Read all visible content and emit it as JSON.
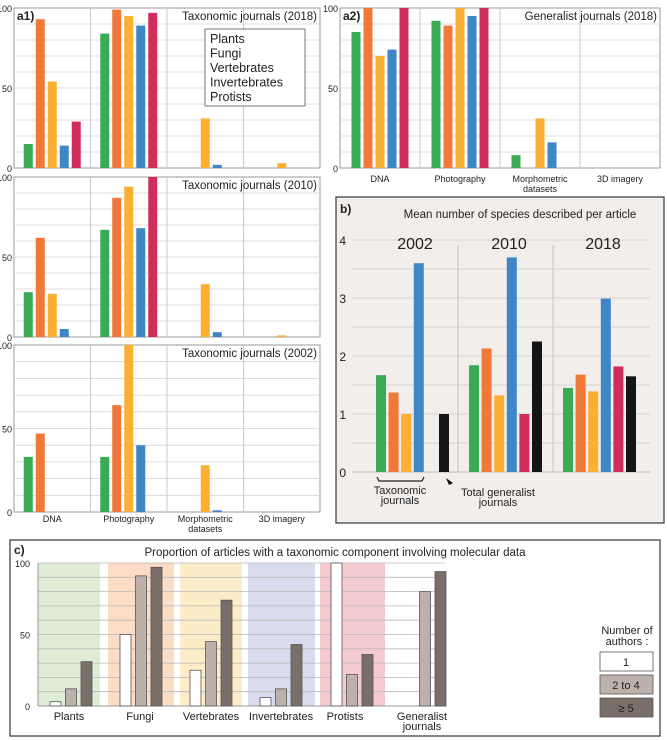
{
  "colors": {
    "Plants": "#3aaa55",
    "Fungi": "#f07838",
    "Vertebrates": "#fbb034",
    "Invertebrates": "#3e86c6",
    "Protists": "#cf2e5c",
    "Total generalist": "#151515",
    "one": "#ffffff",
    "two_to_four": "#bdb2ab",
    "five_plus": "#7a6e69"
  },
  "chart_data": [
    {
      "id": "a1_2018",
      "panel_label": "a1)",
      "type": "bar",
      "title": "Taxonomic journals (2018)",
      "categories": [
        "DNA",
        "Photography",
        "Morphometric datasets",
        "3D imagery"
      ],
      "ylim": [
        0,
        100
      ],
      "yticks": [
        "0",
        "50",
        "100"
      ],
      "legend": [
        "Plants",
        "Fungi",
        "Vertebrates",
        "Invertebrates",
        "Protists"
      ],
      "series": [
        {
          "name": "Plants",
          "values": [
            15,
            84,
            0,
            0
          ]
        },
        {
          "name": "Fungi",
          "values": [
            93,
            99,
            0,
            0
          ]
        },
        {
          "name": "Vertebrates",
          "values": [
            54,
            95,
            31,
            3
          ]
        },
        {
          "name": "Invertebrates",
          "values": [
            14,
            89,
            2,
            0
          ]
        },
        {
          "name": "Protists",
          "values": [
            29,
            97,
            0,
            0
          ]
        }
      ]
    },
    {
      "id": "a1_2010",
      "type": "bar",
      "title": "Taxonomic journals (2010)",
      "categories": [
        "DNA",
        "Photography",
        "Morphometric datasets",
        "3D imagery"
      ],
      "ylim": [
        0,
        100
      ],
      "yticks": [
        "0",
        "50",
        "100"
      ],
      "series": [
        {
          "name": "Plants",
          "values": [
            28,
            67,
            0,
            0
          ]
        },
        {
          "name": "Fungi",
          "values": [
            62,
            87,
            0,
            0
          ]
        },
        {
          "name": "Vertebrates",
          "values": [
            27,
            94,
            33,
            1
          ]
        },
        {
          "name": "Invertebrates",
          "values": [
            5,
            68,
            3,
            0
          ]
        },
        {
          "name": "Protists",
          "values": [
            0,
            100,
            0,
            0
          ]
        }
      ]
    },
    {
      "id": "a1_2002",
      "type": "bar",
      "title": "Taxonomic journals (2002)",
      "categories": [
        "DNA",
        "Photography",
        "Morphometric datasets",
        "3D imagery"
      ],
      "ylim": [
        0,
        100
      ],
      "yticks": [
        "0",
        "50",
        "100"
      ],
      "series": [
        {
          "name": "Plants",
          "values": [
            33,
            33,
            0,
            0
          ]
        },
        {
          "name": "Fungi",
          "values": [
            47,
            64,
            0,
            0
          ]
        },
        {
          "name": "Vertebrates",
          "values": [
            0,
            100,
            28,
            0
          ]
        },
        {
          "name": "Invertebrates",
          "values": [
            0,
            40,
            1,
            0
          ]
        },
        {
          "name": "Protists",
          "values": [
            0,
            0,
            0,
            0
          ]
        }
      ]
    },
    {
      "id": "a2_2018",
      "panel_label": "a2)",
      "type": "bar",
      "title": "Generalist journals (2018)",
      "categories": [
        "DNA",
        "Photography",
        "Morphometric datasets",
        "3D imagery"
      ],
      "ylim": [
        0,
        100
      ],
      "yticks": [
        "0",
        "50",
        "100"
      ],
      "series": [
        {
          "name": "Plants",
          "values": [
            85,
            92,
            8,
            0
          ]
        },
        {
          "name": "Fungi",
          "values": [
            100,
            89,
            0,
            0
          ]
        },
        {
          "name": "Vertebrates",
          "values": [
            70,
            100,
            31,
            0
          ]
        },
        {
          "name": "Invertebrates",
          "values": [
            74,
            95,
            16,
            0
          ]
        },
        {
          "name": "Protists",
          "values": [
            100,
            100,
            0,
            0
          ]
        }
      ]
    },
    {
      "id": "b",
      "panel_label": "b)",
      "type": "bar",
      "title": "Mean number of species described per article",
      "categories": [
        "2002",
        "2010",
        "2018"
      ],
      "ylim": [
        0,
        4
      ],
      "yticks": [
        "0",
        "1",
        "2",
        "3",
        "4"
      ],
      "annotations": {
        "taxonomic": "Taxonomic journals",
        "generalist": "Total generalist journals"
      },
      "series": [
        {
          "name": "Plants",
          "values": [
            1.67,
            1.84,
            1.45
          ]
        },
        {
          "name": "Fungi",
          "values": [
            1.37,
            2.13,
            1.68
          ]
        },
        {
          "name": "Vertebrates",
          "values": [
            1.0,
            1.32,
            1.39
          ]
        },
        {
          "name": "Invertebrates",
          "values": [
            3.6,
            3.7,
            2.99
          ]
        },
        {
          "name": "Protists",
          "values": [
            null,
            1.0,
            1.82
          ]
        },
        {
          "name": "Total generalist",
          "values": [
            1.0,
            2.25,
            1.65
          ]
        }
      ]
    },
    {
      "id": "c",
      "panel_label": "c)",
      "type": "bar",
      "title": "Proportion of articles with a taxonomic component involving molecular data",
      "categories": [
        "Plants",
        "Fungi",
        "Vertebrates",
        "Invertebrates",
        "Protists",
        "Generalist journals"
      ],
      "ylim": [
        0,
        100
      ],
      "yticks": [
        "0",
        "50",
        "100"
      ],
      "legend_title": "Number of authors :",
      "legend": [
        "1",
        "2 to 4",
        "≥ 5"
      ],
      "series": [
        {
          "name": "1",
          "values": [
            3,
            50,
            25,
            6,
            100,
            0
          ]
        },
        {
          "name": "2 to 4",
          "values": [
            12,
            91,
            45,
            12,
            22,
            80
          ]
        },
        {
          "name": "≥ 5",
          "values": [
            31,
            97,
            74,
            43,
            36,
            94
          ]
        }
      ]
    }
  ]
}
